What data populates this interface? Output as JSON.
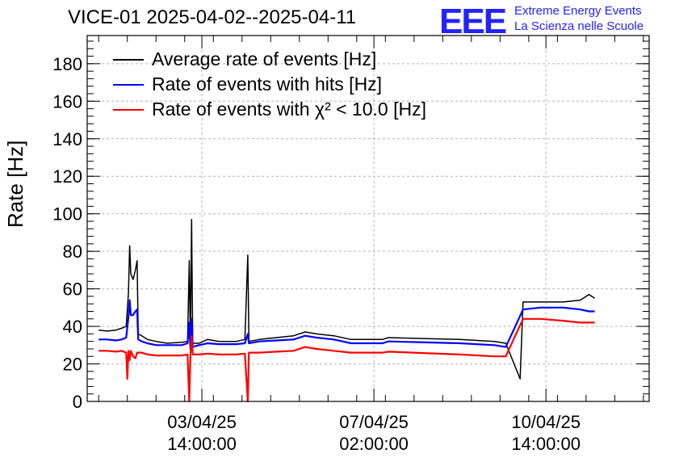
{
  "title": "VICE-01 2025-04-02--2025-04-11",
  "logo": {
    "mark": "EEE",
    "line1": "Extreme Energy Events",
    "line2": "La Scienza nelle Scuole",
    "color": "#2323ff"
  },
  "chart_data": {
    "type": "line",
    "title": "VICE-01 2025-04-02--2025-04-11",
    "ylabel": "Rate [Hz]",
    "xlabel": "",
    "ylim": [
      0,
      195
    ],
    "xlim_days": [
      0,
      9.8
    ],
    "y_ticks": [
      0,
      20,
      40,
      60,
      80,
      100,
      120,
      140,
      160,
      180
    ],
    "x_ticks": [
      {
        "day": 2.0,
        "label_date": "03/04/25",
        "label_time": "14:00:00"
      },
      {
        "day": 5.0,
        "label_date": "07/04/25",
        "label_time": "02:00:00"
      },
      {
        "day": 8.0,
        "label_date": "10/04/25",
        "label_time": "14:00:00"
      }
    ],
    "grid": true,
    "legend_position": "top-left",
    "series": [
      {
        "name": "Average rate of events [Hz]",
        "color": "#000000",
        "points": [
          [
            0.2,
            38
          ],
          [
            0.35,
            37.5
          ],
          [
            0.5,
            38
          ],
          [
            0.6,
            39
          ],
          [
            0.68,
            40
          ],
          [
            0.72,
            58
          ],
          [
            0.74,
            83
          ],
          [
            0.76,
            68
          ],
          [
            0.8,
            65
          ],
          [
            0.84,
            70
          ],
          [
            0.87,
            75
          ],
          [
            0.89,
            36
          ],
          [
            0.95,
            35
          ],
          [
            1.05,
            33
          ],
          [
            1.2,
            32
          ],
          [
            1.4,
            31
          ],
          [
            1.65,
            31.5
          ],
          [
            1.75,
            32
          ],
          [
            1.78,
            75
          ],
          [
            1.8,
            30
          ],
          [
            1.82,
            97
          ],
          [
            1.84,
            31
          ],
          [
            1.95,
            31
          ],
          [
            2.1,
            33
          ],
          [
            2.3,
            32
          ],
          [
            2.6,
            32
          ],
          [
            2.75,
            33
          ],
          [
            2.8,
            78
          ],
          [
            2.82,
            32
          ],
          [
            3.0,
            33
          ],
          [
            3.3,
            34
          ],
          [
            3.6,
            35
          ],
          [
            3.8,
            37
          ],
          [
            4.0,
            36
          ],
          [
            4.3,
            35
          ],
          [
            4.6,
            33
          ],
          [
            4.9,
            33
          ],
          [
            5.15,
            33
          ],
          [
            5.25,
            34
          ],
          [
            6.5,
            33
          ],
          [
            7.1,
            32
          ],
          [
            7.3,
            31
          ],
          [
            7.55,
            12
          ],
          [
            7.6,
            53
          ],
          [
            7.9,
            53
          ],
          [
            8.3,
            53
          ],
          [
            8.6,
            54
          ],
          [
            8.75,
            57
          ],
          [
            8.85,
            55
          ]
        ]
      },
      {
        "name": "Rate of events with hits [Hz]",
        "color": "#0000ff",
        "points": [
          [
            0.2,
            33
          ],
          [
            0.35,
            33
          ],
          [
            0.5,
            32.5
          ],
          [
            0.6,
            33
          ],
          [
            0.68,
            34
          ],
          [
            0.72,
            45
          ],
          [
            0.74,
            54
          ],
          [
            0.76,
            46
          ],
          [
            0.8,
            46
          ],
          [
            0.84,
            48
          ],
          [
            0.87,
            49
          ],
          [
            0.89,
            33
          ],
          [
            0.95,
            32
          ],
          [
            1.05,
            31
          ],
          [
            1.2,
            30
          ],
          [
            1.4,
            30
          ],
          [
            1.65,
            30
          ],
          [
            1.75,
            31
          ],
          [
            1.78,
            42
          ],
          [
            1.8,
            28
          ],
          [
            1.82,
            44
          ],
          [
            1.84,
            29
          ],
          [
            1.95,
            30
          ],
          [
            2.1,
            31
          ],
          [
            2.3,
            30.5
          ],
          [
            2.6,
            30.5
          ],
          [
            2.75,
            31
          ],
          [
            2.8,
            36
          ],
          [
            2.82,
            31
          ],
          [
            3.0,
            32
          ],
          [
            3.3,
            32.5
          ],
          [
            3.6,
            33
          ],
          [
            3.8,
            35
          ],
          [
            4.0,
            34
          ],
          [
            4.3,
            33
          ],
          [
            4.6,
            31
          ],
          [
            4.9,
            31
          ],
          [
            5.15,
            31
          ],
          [
            5.25,
            32
          ],
          [
            6.5,
            31
          ],
          [
            7.1,
            30
          ],
          [
            7.3,
            29
          ],
          [
            7.6,
            49
          ],
          [
            7.9,
            50
          ],
          [
            8.3,
            50
          ],
          [
            8.6,
            49
          ],
          [
            8.75,
            48
          ],
          [
            8.85,
            48
          ]
        ]
      },
      {
        "name": "Rate of events with χ² < 10.0 [Hz]",
        "color": "#ff0000",
        "points": [
          [
            0.2,
            27
          ],
          [
            0.35,
            27
          ],
          [
            0.5,
            26.5
          ],
          [
            0.6,
            27
          ],
          [
            0.68,
            26
          ],
          [
            0.7,
            12
          ],
          [
            0.72,
            27
          ],
          [
            0.74,
            22
          ],
          [
            0.76,
            27
          ],
          [
            0.8,
            24
          ],
          [
            0.84,
            23
          ],
          [
            0.87,
            26
          ],
          [
            0.89,
            26
          ],
          [
            0.95,
            26
          ],
          [
            1.05,
            25
          ],
          [
            1.2,
            24.5
          ],
          [
            1.4,
            24.5
          ],
          [
            1.65,
            24.5
          ],
          [
            1.75,
            25
          ],
          [
            1.78,
            0
          ],
          [
            1.8,
            24
          ],
          [
            1.82,
            35
          ],
          [
            1.84,
            25
          ],
          [
            1.95,
            25
          ],
          [
            2.1,
            25.5
          ],
          [
            2.3,
            25
          ],
          [
            2.6,
            25
          ],
          [
            2.75,
            25.5
          ],
          [
            2.8,
            0
          ],
          [
            2.82,
            26
          ],
          [
            3.0,
            26
          ],
          [
            3.3,
            26.5
          ],
          [
            3.6,
            27
          ],
          [
            3.8,
            29
          ],
          [
            4.0,
            28
          ],
          [
            4.3,
            27
          ],
          [
            4.6,
            26
          ],
          [
            4.9,
            26
          ],
          [
            5.15,
            26
          ],
          [
            5.25,
            26.5
          ],
          [
            6.5,
            25
          ],
          [
            7.1,
            24
          ],
          [
            7.3,
            24
          ],
          [
            7.6,
            44
          ],
          [
            7.9,
            44
          ],
          [
            8.3,
            43
          ],
          [
            8.6,
            42
          ],
          [
            8.75,
            42
          ],
          [
            8.85,
            42
          ]
        ]
      }
    ]
  }
}
